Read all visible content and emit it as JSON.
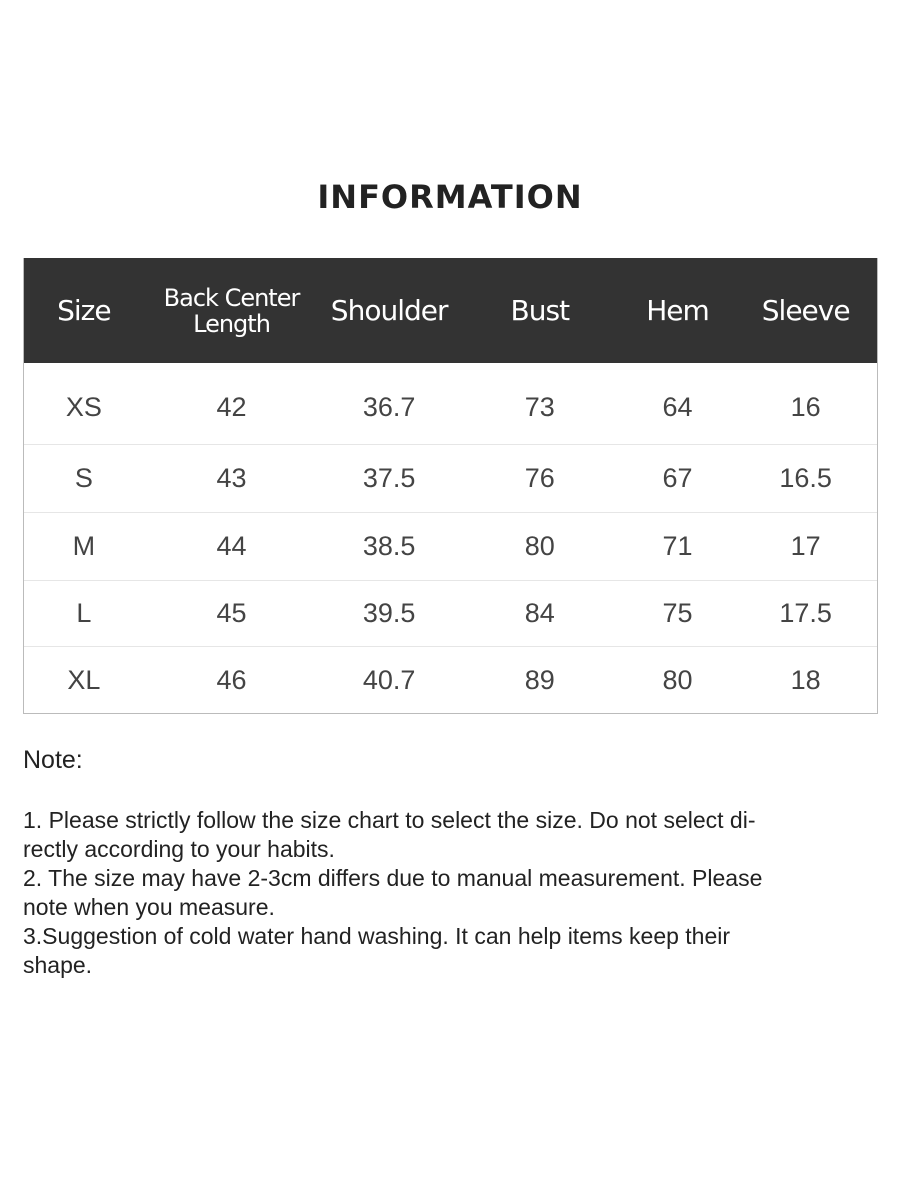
{
  "title": "INFORMATION",
  "table": {
    "headers": [
      "Size",
      "Back Center Length",
      "Shoulder",
      "Bust",
      "Hem",
      "Sleeve"
    ],
    "rows": [
      [
        "XS",
        "42",
        "36.7",
        "73",
        "64",
        "16"
      ],
      [
        "S",
        "43",
        "37.5",
        "76",
        "67",
        "16.5"
      ],
      [
        "M",
        "44",
        "38.5",
        "80",
        "71",
        "17"
      ],
      [
        "L",
        "45",
        "39.5",
        "84",
        "75",
        "17.5"
      ],
      [
        "XL",
        "46",
        "40.7",
        "89",
        "80",
        "18"
      ]
    ]
  },
  "colors": {
    "header_bg": "#333333",
    "header_text": "#ffffff"
  },
  "note": {
    "heading": "Note:",
    "lines": [
      "1. Please strictly follow the size chart  to select the size. Do not select di-",
      "rectly according to your habits.",
      "2. The size may have 2-3cm differs due to manual measurement. Please",
      "note when you measure.",
      "3.Suggestion of cold water hand washing. It can help items keep their",
      "shape."
    ]
  }
}
